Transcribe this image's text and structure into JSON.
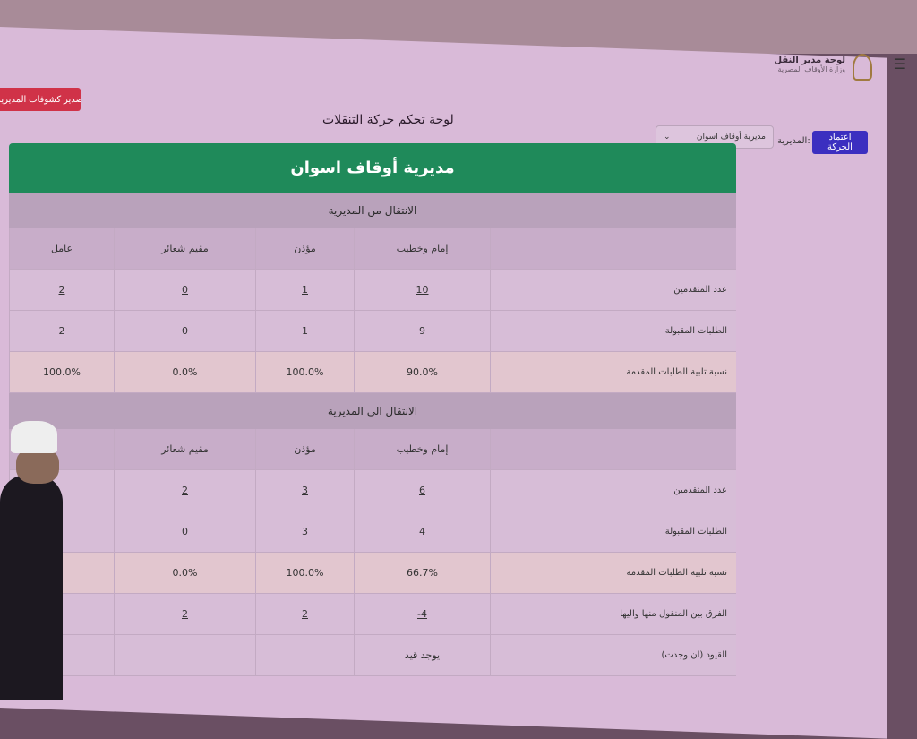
{
  "navbar": {
    "menu_icon": "hamburger-icon",
    "title": "لوحة مدير النقل",
    "subtitle": "وزارة الأوقاف المصرية"
  },
  "toolbar": {
    "approve_label": "اعتماد الحركة",
    "directorate_label": "المديرية:",
    "directorate_value": "مديرية أوقاف اسوان",
    "export_label": "تصدير كشوفات المديرية"
  },
  "page_title": "لوحة تحكم حركة التنقلات",
  "card_title": "مديرية أوقاف اسوان",
  "from_section": {
    "title": "الانتقال من المديرية",
    "columns": [
      "",
      "إمام وخطيب",
      "مؤذن",
      "مقيم شعائر",
      "عامل"
    ],
    "rows": [
      {
        "label": "عدد المتقدمين",
        "values": [
          "10",
          "1",
          "0",
          "2"
        ]
      },
      {
        "label": "الطلبات المقبولة",
        "values": [
          "9",
          "1",
          "0",
          "2"
        ]
      },
      {
        "label": "نسبة تلبية الطلبات المقدمة",
        "values": [
          "90.0%",
          "100.0%",
          "0.0%",
          "100.0%"
        ]
      }
    ]
  },
  "to_section": {
    "title": "الانتقال الى المديرية",
    "columns": [
      "",
      "إمام وخطيب",
      "مؤذن",
      "مقيم شعائر",
      ""
    ],
    "rows": [
      {
        "label": "عدد المتقدمين",
        "values": [
          "6",
          "3",
          "2",
          ""
        ]
      },
      {
        "label": "الطلبات المقبولة",
        "values": [
          "4",
          "3",
          "0",
          ""
        ]
      },
      {
        "label": "نسبة تلبية الطلبات المقدمة",
        "values": [
          "66.7%",
          "100.0%",
          "0.0%",
          ""
        ]
      },
      {
        "label": "الفرق بين المنقول منها واليها",
        "values": [
          "4-",
          "2",
          "2",
          ""
        ]
      },
      {
        "label": "القيود (ان وجدت)",
        "values": [
          "يوجد قيد",
          "",
          "",
          ""
        ]
      }
    ]
  },
  "colors": {
    "card_header": "#1f8a5a",
    "approve": "#3b2fc0",
    "export": "#d03248"
  }
}
